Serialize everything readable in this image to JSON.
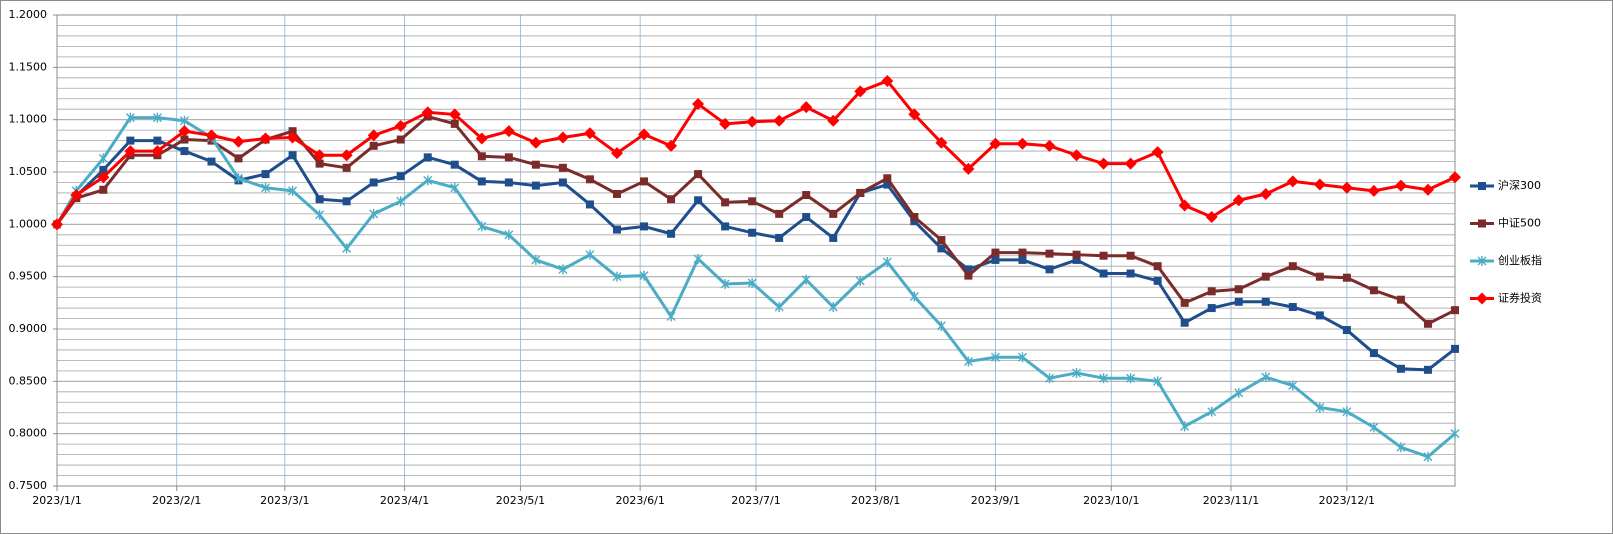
{
  "chart_data": {
    "type": "line",
    "x": [
      "2023/1/1",
      "2023/1/6",
      "2023/1/13",
      "2023/1/20",
      "2023/1/27",
      "2023/2/3",
      "2023/2/10",
      "2023/2/17",
      "2023/2/24",
      "2023/3/3",
      "2023/3/10",
      "2023/3/17",
      "2023/3/24",
      "2023/3/31",
      "2023/4/7",
      "2023/4/14",
      "2023/4/21",
      "2023/4/28",
      "2023/5/5",
      "2023/5/12",
      "2023/5/19",
      "2023/5/26",
      "2023/6/2",
      "2023/6/9",
      "2023/6/16",
      "2023/6/23",
      "2023/6/30",
      "2023/7/7",
      "2023/7/14",
      "2023/7/21",
      "2023/7/28",
      "2023/8/4",
      "2023/8/11",
      "2023/8/18",
      "2023/8/25",
      "2023/9/1",
      "2023/9/8",
      "2023/9/15",
      "2023/9/22",
      "2023/9/29",
      "2023/10/6",
      "2023/10/13",
      "2023/10/20",
      "2023/10/27",
      "2023/11/3",
      "2023/11/10",
      "2023/11/17",
      "2023/11/24",
      "2023/12/1",
      "2023/12/8",
      "2023/12/15",
      "2023/12/22",
      "2023/12/29"
    ],
    "xlim": [
      "2023/1/1",
      "2023/12/29"
    ],
    "xticks": [
      "2023/1/1",
      "2023/2/1",
      "2023/3/1",
      "2023/4/1",
      "2023/5/1",
      "2023/6/1",
      "2023/7/1",
      "2023/8/1",
      "2023/9/1",
      "2023/10/1",
      "2023/11/1",
      "2023/12/1"
    ],
    "ylim": [
      0.75,
      1.2
    ],
    "yticks": [
      {
        "value": 0.75,
        "label": "0.7500"
      },
      {
        "value": 0.8,
        "label": "0.8000"
      },
      {
        "value": 0.85,
        "label": "0.8500"
      },
      {
        "value": 0.9,
        "label": "0.9000"
      },
      {
        "value": 0.95,
        "label": "0.9500"
      },
      {
        "value": 1.0,
        "label": "1.0000"
      },
      {
        "value": 1.05,
        "label": "1.0500"
      },
      {
        "value": 1.1,
        "label": "1.1000"
      },
      {
        "value": 1.15,
        "label": "1.1500"
      },
      {
        "value": 1.2,
        "label": "1.2000"
      }
    ],
    "y_minor_grid_step": 0.01,
    "grid": true,
    "legend": "right",
    "series": [
      {
        "name": "沪深300",
        "color": "#1f4e8c",
        "marker": "square",
        "values": [
          1.0,
          1.027,
          1.052,
          1.08,
          1.08,
          1.07,
          1.06,
          1.042,
          1.048,
          1.066,
          1.024,
          1.022,
          1.04,
          1.046,
          1.064,
          1.057,
          1.041,
          1.04,
          1.037,
          1.04,
          1.019,
          0.995,
          0.998,
          0.991,
          1.023,
          0.998,
          0.992,
          0.987,
          1.007,
          0.987,
          1.03,
          1.038,
          1.003,
          0.977,
          0.957,
          0.966,
          0.966,
          0.957,
          0.966,
          0.953,
          0.953,
          0.946,
          0.906,
          0.92,
          0.926,
          0.926,
          0.921,
          0.913,
          0.899,
          0.877,
          0.862,
          0.861,
          0.881
        ]
      },
      {
        "name": "中证500",
        "color": "#7b2c2a",
        "marker": "square",
        "values": [
          1.0,
          1.025,
          1.033,
          1.066,
          1.066,
          1.081,
          1.08,
          1.063,
          1.081,
          1.089,
          1.058,
          1.054,
          1.075,
          1.081,
          1.103,
          1.096,
          1.065,
          1.064,
          1.057,
          1.054,
          1.043,
          1.029,
          1.041,
          1.024,
          1.048,
          1.021,
          1.022,
          1.01,
          1.028,
          1.01,
          1.03,
          1.044,
          1.007,
          0.985,
          0.951,
          0.973,
          0.973,
          0.972,
          0.971,
          0.97,
          0.97,
          0.96,
          0.925,
          0.936,
          0.938,
          0.95,
          0.96,
          0.95,
          0.949,
          0.937,
          0.928,
          0.905,
          0.918
        ]
      },
      {
        "name": "创业板指",
        "color": "#4bacc6",
        "marker": "asterisk",
        "values": [
          1.0,
          1.032,
          1.063,
          1.102,
          1.102,
          1.099,
          1.083,
          1.044,
          1.035,
          1.032,
          1.009,
          0.977,
          1.01,
          1.022,
          1.042,
          1.035,
          0.998,
          0.99,
          0.966,
          0.957,
          0.971,
          0.95,
          0.951,
          0.912,
          0.967,
          0.943,
          0.944,
          0.921,
          0.947,
          0.921,
          0.946,
          0.964,
          0.931,
          0.903,
          0.869,
          0.873,
          0.873,
          0.853,
          0.858,
          0.853,
          0.853,
          0.85,
          0.807,
          0.821,
          0.839,
          0.854,
          0.846,
          0.825,
          0.821,
          0.806,
          0.787,
          0.778,
          0.8
        ]
      },
      {
        "name": "证券投资",
        "color": "#ff0000",
        "marker": "diamond",
        "values": [
          1.0,
          1.028,
          1.045,
          1.07,
          1.07,
          1.089,
          1.085,
          1.079,
          1.082,
          1.083,
          1.066,
          1.066,
          1.085,
          1.094,
          1.107,
          1.105,
          1.082,
          1.089,
          1.078,
          1.083,
          1.087,
          1.068,
          1.086,
          1.075,
          1.115,
          1.096,
          1.098,
          1.099,
          1.112,
          1.099,
          1.127,
          1.137,
          1.105,
          1.078,
          1.053,
          1.077,
          1.077,
          1.075,
          1.066,
          1.058,
          1.058,
          1.069,
          1.018,
          1.007,
          1.023,
          1.029,
          1.041,
          1.038,
          1.035,
          1.032,
          1.037,
          1.033,
          1.045
        ]
      }
    ]
  }
}
